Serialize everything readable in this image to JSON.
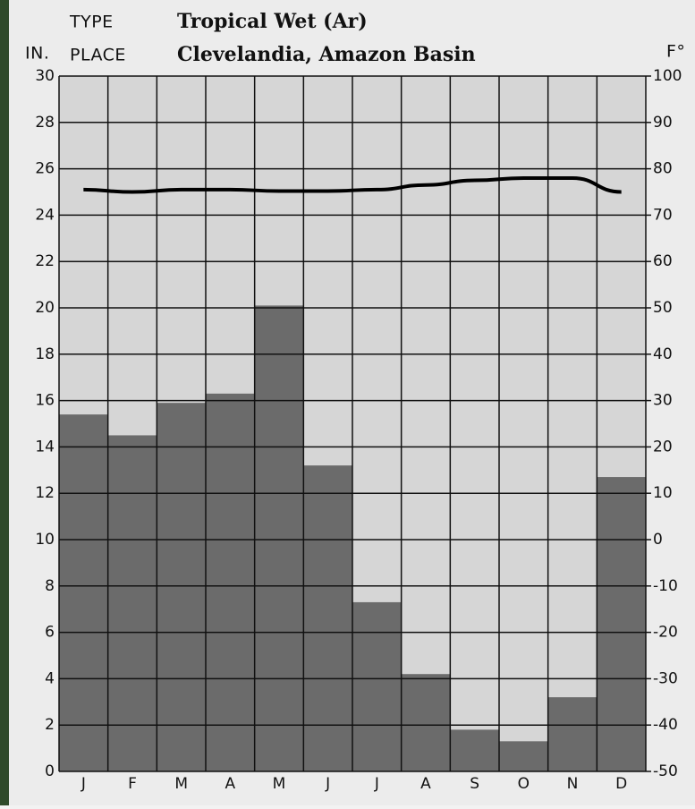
{
  "chart_data": {
    "type": "bar",
    "type_label": "TYPE",
    "title": "Tropical Wet (Ar)",
    "place_label": "PLACE",
    "subtitle": "Clevelandia, Amazon Basin",
    "y_label": "IN.",
    "y2_label": "F°",
    "categories": [
      "J",
      "F",
      "M",
      "A",
      "M",
      "J",
      "J",
      "A",
      "S",
      "O",
      "N",
      "D"
    ],
    "series": [
      {
        "type": "bar",
        "color": "#6b6b6b",
        "values": [
          15.4,
          14.5,
          15.9,
          16.3,
          20.1,
          13.2,
          7.3,
          4.2,
          1.8,
          1.3,
          3.2,
          12.7
        ]
      },
      {
        "type": "line",
        "axis": "y2",
        "color": "#000000",
        "values": [
          75.5,
          75,
          75.5,
          75.5,
          75.2,
          75.2,
          75.5,
          76.5,
          77.5,
          78,
          78,
          75
        ]
      }
    ],
    "ylim": [
      0,
      30
    ],
    "yticks": [
      0,
      2,
      4,
      6,
      8,
      10,
      12,
      14,
      16,
      18,
      20,
      22,
      24,
      26,
      28,
      30
    ],
    "y2lim": [
      -50,
      100
    ],
    "y2ticks": [
      -50,
      -40,
      -30,
      -20,
      -10,
      0,
      10,
      20,
      30,
      40,
      50,
      60,
      70,
      80,
      90,
      100
    ],
    "grid": true,
    "plot_color": "#d6d6d6"
  }
}
